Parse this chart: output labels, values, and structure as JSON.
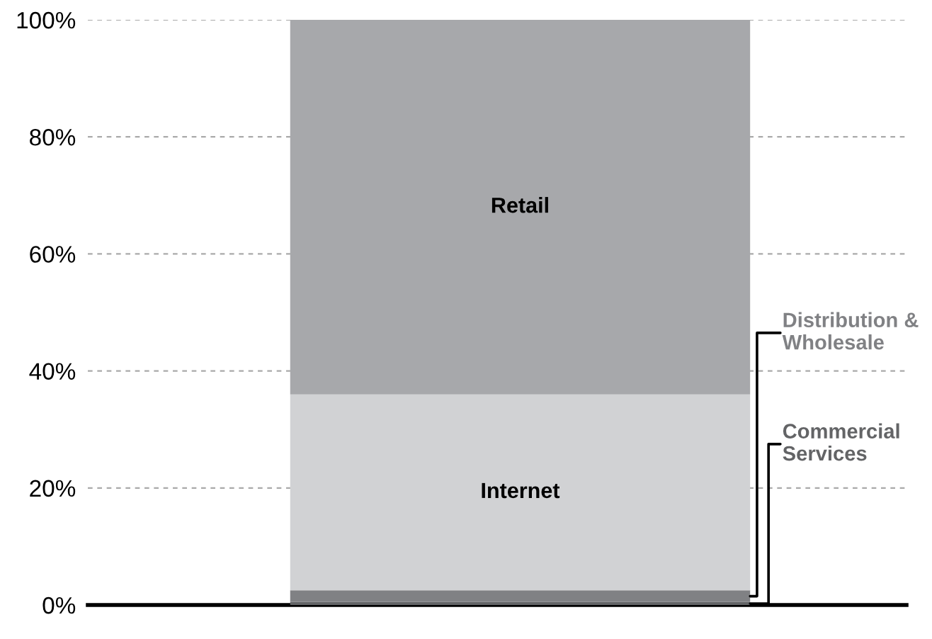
{
  "chart_data": {
    "type": "bar",
    "stacked": true,
    "categories": [
      null
    ],
    "series": [
      {
        "name": "Commercial Services",
        "color": "#636466",
        "values": [
          0.5
        ]
      },
      {
        "name": "Distribution & Wholesale",
        "color": "#808184",
        "values": [
          2
        ]
      },
      {
        "name": "Internet",
        "color": "#d1d2d4",
        "values": [
          33.5
        ]
      },
      {
        "name": "Retail",
        "color": "#a7a8ab",
        "values": [
          64
        ]
      }
    ],
    "ylim": [
      0,
      100
    ],
    "yticks": [
      {
        "value": 0,
        "label": "0%"
      },
      {
        "value": 20,
        "label": "20%"
      },
      {
        "value": 40,
        "label": "40%"
      },
      {
        "value": 60,
        "label": "60%"
      },
      {
        "value": 80,
        "label": "80%"
      },
      {
        "value": 100,
        "label": "100%"
      }
    ],
    "grid": "y"
  }
}
